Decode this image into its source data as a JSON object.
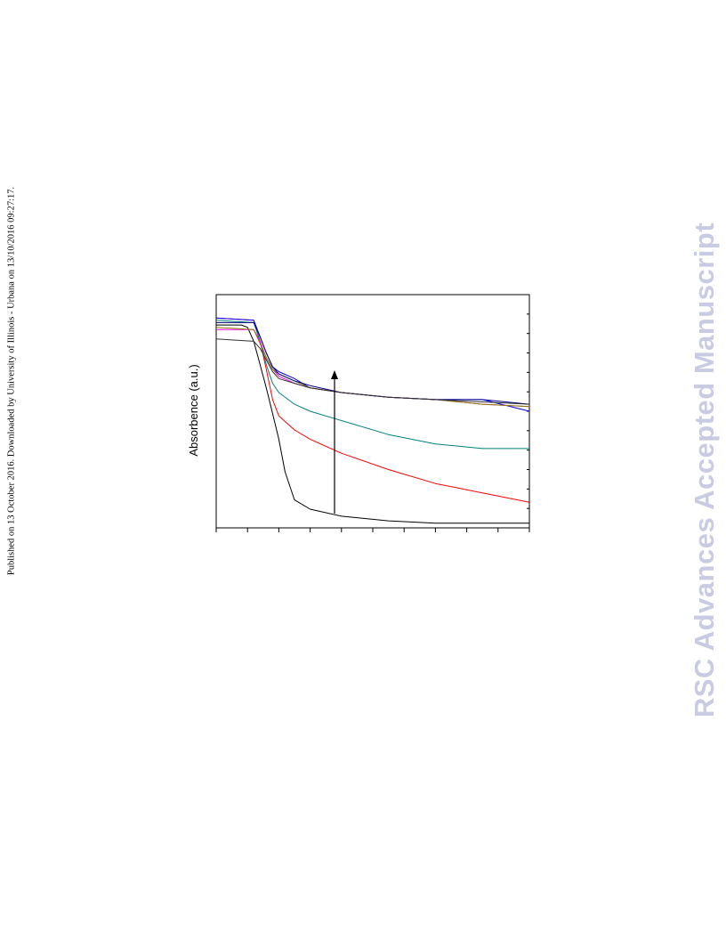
{
  "page": {
    "side_note": "Published on 13 October 2016. Downloaded by University of Illinois - Urbana on 13/10/2016 09:27:17.",
    "watermark": "RSC Advances Accepted Manuscript",
    "watermark_color": "#c8cbe2"
  },
  "chart_data": {
    "type": "line",
    "title": "",
    "xlabel": "",
    "ylabel": "Absorbence (a.u.)",
    "x_ticks": 11,
    "y_ticks": 13,
    "grid": false,
    "legend": "none",
    "annotation": "arrow pointing upward, indicating trend across series",
    "series": [
      {
        "color": "#000000",
        "x": [
          0,
          0.08,
          0.1,
          0.12,
          0.14,
          0.16,
          0.18,
          0.2,
          0.22,
          0.25,
          0.3,
          0.4,
          0.55,
          0.7,
          0.85,
          1.0
        ],
        "y": [
          0.87,
          0.87,
          0.86,
          0.8,
          0.7,
          0.6,
          0.49,
          0.38,
          0.24,
          0.12,
          0.08,
          0.05,
          0.03,
          0.02,
          0.02,
          0.02
        ]
      },
      {
        "color": "#ff0000",
        "x": [
          0,
          0.12,
          0.14,
          0.16,
          0.18,
          0.2,
          0.25,
          0.3,
          0.4,
          0.55,
          0.7,
          0.85,
          1.0
        ],
        "y": [
          0.9,
          0.89,
          0.8,
          0.68,
          0.55,
          0.48,
          0.42,
          0.38,
          0.32,
          0.25,
          0.19,
          0.15,
          0.11
        ]
      },
      {
        "color": "#008080",
        "x": [
          0,
          0.12,
          0.14,
          0.16,
          0.18,
          0.2,
          0.25,
          0.3,
          0.4,
          0.55,
          0.7,
          0.85,
          1.0
        ],
        "y": [
          0.89,
          0.88,
          0.8,
          0.7,
          0.62,
          0.58,
          0.53,
          0.5,
          0.46,
          0.4,
          0.36,
          0.34,
          0.34
        ]
      },
      {
        "color": "#0000ff",
        "x": [
          0,
          0.12,
          0.14,
          0.16,
          0.18,
          0.2,
          0.25,
          0.3,
          0.4,
          0.55,
          0.7,
          0.85,
          1.0
        ],
        "y": [
          0.9,
          0.89,
          0.82,
          0.75,
          0.69,
          0.67,
          0.64,
          0.6,
          0.58,
          0.56,
          0.55,
          0.55,
          0.5
        ]
      },
      {
        "color": "#ff00ff",
        "x": [
          0,
          0.12,
          0.14,
          0.16,
          0.18,
          0.2,
          0.25,
          0.3,
          0.4,
          0.55,
          0.7,
          0.85,
          1.0
        ],
        "y": [
          0.85,
          0.85,
          0.8,
          0.73,
          0.68,
          0.65,
          0.62,
          0.6,
          0.58,
          0.56,
          0.55,
          0.53,
          0.52
        ]
      },
      {
        "color": "#8b7d00",
        "x": [
          0,
          0.12,
          0.14,
          0.16,
          0.18,
          0.2,
          0.25,
          0.3,
          0.4,
          0.55,
          0.7,
          0.85,
          1.0
        ],
        "y": [
          0.86,
          0.85,
          0.79,
          0.73,
          0.68,
          0.66,
          0.63,
          0.6,
          0.58,
          0.56,
          0.55,
          0.53,
          0.52
        ]
      },
      {
        "color": "#000080",
        "x": [
          0,
          0.12,
          0.14,
          0.16,
          0.18,
          0.2,
          0.25,
          0.3,
          0.4,
          0.55,
          0.7,
          0.85,
          1.0
        ],
        "y": [
          0.88,
          0.88,
          0.82,
          0.75,
          0.69,
          0.66,
          0.63,
          0.61,
          0.58,
          0.56,
          0.55,
          0.55,
          0.53
        ]
      },
      {
        "color": "#333333",
        "x": [
          0,
          0.12,
          0.14,
          0.16,
          0.18,
          0.2,
          0.25,
          0.3,
          0.4,
          0.55,
          0.7,
          0.85,
          1.0
        ],
        "y": [
          0.81,
          0.8,
          0.77,
          0.72,
          0.67,
          0.64,
          0.62,
          0.6,
          0.58,
          0.56,
          0.55,
          0.54,
          0.53
        ]
      }
    ]
  }
}
